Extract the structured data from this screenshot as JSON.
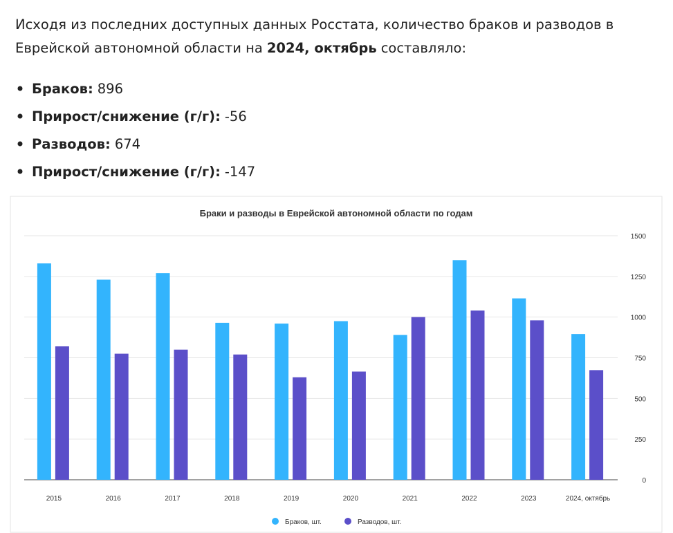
{
  "intro": {
    "line1": "Исходя из последних доступных данных Росстата, количество браков и разводов в",
    "line2": "Еврейской автономной области на",
    "line2_end": "составляло:"
  },
  "items": [
    {
      "label": "Браков:",
      "value": 896
    },
    {
      "label": "Прирост/снижение (г/г):",
      "value": -56
    },
    {
      "label": "Разводов:",
      "value": 674
    },
    {
      "label": "Прирост/снижение (г/г):",
      "value": -147
    }
  ],
  "chart_data": {
    "type": "bar",
    "title": "Браки и разводы в Еврейской автономной области по годам",
    "categories": [
      "2015",
      "2016",
      "2017",
      "2018",
      "2019",
      "2020",
      "2021",
      "2022",
      "2023",
      "2024, октябрь"
    ],
    "series": [
      {
        "name": "Браков, шт.",
        "color": "#33b4fd",
        "values": [
          1330,
          1230,
          1270,
          965,
          960,
          975,
          890,
          1350,
          1115,
          896
        ]
      },
      {
        "name": "Разводов, шт.",
        "color": "#5b4fc9",
        "values": [
          820,
          775,
          800,
          770,
          630,
          665,
          1000,
          1040,
          980,
          674
        ]
      }
    ],
    "ylim": [
      0,
      1500
    ],
    "yticks": [
      0,
      250,
      500,
      750,
      1000,
      1250,
      1500
    ],
    "grid": true,
    "legend": "bottom"
  }
}
